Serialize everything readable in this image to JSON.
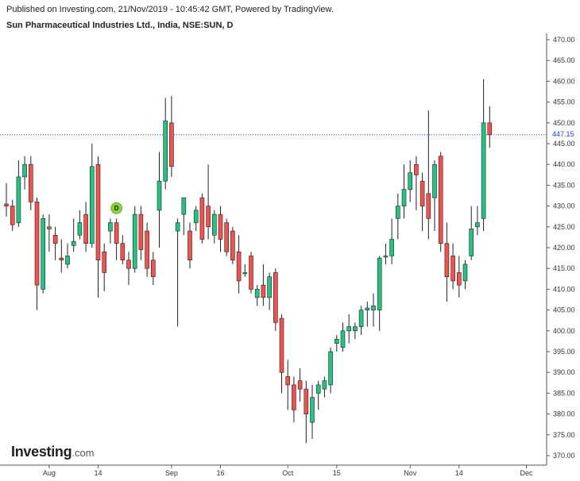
{
  "header": {
    "published": "Published on Investing.com, 21/Nov/2019 - 10:45:42 GMT, Powered by TradingView.",
    "symbol": "Sun Pharmaceutical Industries Ltd., India, NSE:SUN, D"
  },
  "logo": {
    "main": "Investing",
    "suffix": ".com"
  },
  "last_price_label": "447.15",
  "dividend_marker": "D",
  "colors": {
    "up": "#26c281",
    "down": "#ef5350",
    "last_price_line": "#1e3cff",
    "dividend": "#8bd13b"
  },
  "chart_data": {
    "type": "candlestick",
    "title": "Sun Pharmaceutical Industries Ltd., India, NSE:SUN, D",
    "ylim": [
      368,
      472
    ],
    "y_ticks": [
      370,
      375,
      380,
      385,
      390,
      395,
      400,
      405,
      410,
      415,
      420,
      425,
      430,
      435,
      440,
      445,
      450,
      455,
      460,
      465,
      470
    ],
    "y_tick_labels": [
      "370.00",
      "375.00",
      "380.00",
      "385.00",
      "390.00",
      "395.00",
      "400.00",
      "405.00",
      "410.00",
      "415.00",
      "420.00",
      "425.00",
      "430.00",
      "435.00",
      "440.00",
      "445.00",
      "450.00",
      "455.00",
      "460.00",
      "465.00",
      "470.00"
    ],
    "x_labels": [
      {
        "label": "Aug",
        "index": 7
      },
      {
        "label": "14",
        "index": 15
      },
      {
        "label": "Sep",
        "index": 27
      },
      {
        "label": "16",
        "index": 35
      },
      {
        "label": "Oct",
        "index": 46
      },
      {
        "label": "15",
        "index": 54
      },
      {
        "label": "Nov",
        "index": 66
      },
      {
        "label": "14",
        "index": 74
      },
      {
        "label": "Dec",
        "index": 85
      }
    ],
    "last_price": 447.15,
    "dividend_index": 18,
    "candles": [
      {
        "o": 430.5,
        "h": 435.5,
        "l": 427.5,
        "c": 430.0
      },
      {
        "o": 430.0,
        "h": 431.5,
        "l": 424.0,
        "c": 425.5
      },
      {
        "o": 426.0,
        "h": 441.0,
        "l": 425.0,
        "c": 437.0
      },
      {
        "o": 437.0,
        "h": 442.0,
        "l": 434.0,
        "c": 440.0
      },
      {
        "o": 440.0,
        "h": 442.0,
        "l": 429.0,
        "c": 431.0
      },
      {
        "o": 431.0,
        "h": 432.0,
        "l": 405.0,
        "c": 411.0
      },
      {
        "o": 410.0,
        "h": 428.0,
        "l": 409.0,
        "c": 427.0
      },
      {
        "o": 425.0,
        "h": 428.0,
        "l": 419.0,
        "c": 424.5
      },
      {
        "o": 423.0,
        "h": 425.0,
        "l": 417.0,
        "c": 421.0
      },
      {
        "o": 417.5,
        "h": 422.0,
        "l": 414.0,
        "c": 417.0
      },
      {
        "o": 416.0,
        "h": 421.0,
        "l": 415.0,
        "c": 418.0
      },
      {
        "o": 420.5,
        "h": 427.0,
        "l": 419.0,
        "c": 421.5
      },
      {
        "o": 423.0,
        "h": 429.0,
        "l": 422.0,
        "c": 426.0
      },
      {
        "o": 428.0,
        "h": 431.0,
        "l": 419.0,
        "c": 421.0
      },
      {
        "o": 421.0,
        "h": 445.0,
        "l": 420.0,
        "c": 439.5
      },
      {
        "o": 440.0,
        "h": 442.0,
        "l": 408.0,
        "c": 417.0
      },
      {
        "o": 419.0,
        "h": 421.0,
        "l": 409.5,
        "c": 414.0
      },
      {
        "o": 424.0,
        "h": 427.0,
        "l": 421.0,
        "c": 426.0
      },
      {
        "o": 426.0,
        "h": 427.0,
        "l": 417.0,
        "c": 421.0
      },
      {
        "o": 421.0,
        "h": 423.0,
        "l": 416.0,
        "c": 417.0
      },
      {
        "o": 417.0,
        "h": 419.0,
        "l": 411.0,
        "c": 415.0
      },
      {
        "o": 415.0,
        "h": 430.0,
        "l": 414.0,
        "c": 428.0
      },
      {
        "o": 428.0,
        "h": 430.0,
        "l": 417.0,
        "c": 419.5
      },
      {
        "o": 424.0,
        "h": 426.0,
        "l": 413.0,
        "c": 415.0
      },
      {
        "o": 417.0,
        "h": 419.0,
        "l": 411.0,
        "c": 413.0
      },
      {
        "o": 429.0,
        "h": 443.0,
        "l": 420.0,
        "c": 436.0
      },
      {
        "o": 436.0,
        "h": 456.0,
        "l": 434.0,
        "c": 450.5
      },
      {
        "o": 450.0,
        "h": 456.5,
        "l": 437.0,
        "c": 439.5
      },
      {
        "o": 424.0,
        "h": 427.0,
        "l": 401.0,
        "c": 426.0
      },
      {
        "o": 428.0,
        "h": 432.0,
        "l": 423.0,
        "c": 432.0
      },
      {
        "o": 424.0,
        "h": 426.0,
        "l": 415.0,
        "c": 417.0
      },
      {
        "o": 426.0,
        "h": 430.0,
        "l": 424.0,
        "c": 429.0
      },
      {
        "o": 432.0,
        "h": 433.0,
        "l": 421.0,
        "c": 422.0
      },
      {
        "o": 430.0,
        "h": 440.0,
        "l": 422.0,
        "c": 425.0
      },
      {
        "o": 423.0,
        "h": 429.0,
        "l": 421.0,
        "c": 428.0
      },
      {
        "o": 428.0,
        "h": 430.0,
        "l": 419.0,
        "c": 422.0
      },
      {
        "o": 426.0,
        "h": 427.0,
        "l": 418.0,
        "c": 419.0
      },
      {
        "o": 424.0,
        "h": 425.0,
        "l": 416.0,
        "c": 417.0
      },
      {
        "o": 419.0,
        "h": 423.0,
        "l": 409.0,
        "c": 412.0
      },
      {
        "o": 414.0,
        "h": 416.0,
        "l": 413.0,
        "c": 414.0
      },
      {
        "o": 418.0,
        "h": 419.0,
        "l": 409.0,
        "c": 410.0
      },
      {
        "o": 408.0,
        "h": 411.0,
        "l": 406.0,
        "c": 410.0
      },
      {
        "o": 411.0,
        "h": 416.0,
        "l": 406.0,
        "c": 408.0
      },
      {
        "o": 408.0,
        "h": 414.0,
        "l": 405.0,
        "c": 413.0
      },
      {
        "o": 414.0,
        "h": 415.0,
        "l": 400.0,
        "c": 402.0
      },
      {
        "o": 403.0,
        "h": 404.0,
        "l": 385.0,
        "c": 390.0
      },
      {
        "o": 389.0,
        "h": 393.0,
        "l": 381.0,
        "c": 387.0
      },
      {
        "o": 387.0,
        "h": 389.0,
        "l": 378.0,
        "c": 381.0
      },
      {
        "o": 388.0,
        "h": 391.0,
        "l": 383.0,
        "c": 386.0
      },
      {
        "o": 386.0,
        "h": 388.0,
        "l": 373.0,
        "c": 380.0
      },
      {
        "o": 378.0,
        "h": 387.0,
        "l": 374.0,
        "c": 384.0
      },
      {
        "o": 385.0,
        "h": 388.0,
        "l": 381.0,
        "c": 387.0
      },
      {
        "o": 386.0,
        "h": 389.0,
        "l": 384.0,
        "c": 388.0
      },
      {
        "o": 387.0,
        "h": 396.0,
        "l": 385.0,
        "c": 395.0
      },
      {
        "o": 397.0,
        "h": 399.0,
        "l": 395.0,
        "c": 398.0
      },
      {
        "o": 396.0,
        "h": 402.0,
        "l": 395.0,
        "c": 400.0
      },
      {
        "o": 400.0,
        "h": 404.0,
        "l": 397.0,
        "c": 401.0
      },
      {
        "o": 400.0,
        "h": 402.0,
        "l": 398.0,
        "c": 401.0
      },
      {
        "o": 401.0,
        "h": 406.0,
        "l": 399.0,
        "c": 405.0
      },
      {
        "o": 405.0,
        "h": 407.0,
        "l": 401.0,
        "c": 405.5
      },
      {
        "o": 405.0,
        "h": 409.0,
        "l": 401.0,
        "c": 406.0
      },
      {
        "o": 405.0,
        "h": 418.0,
        "l": 400.0,
        "c": 417.5
      },
      {
        "o": 418.0,
        "h": 421.0,
        "l": 416.0,
        "c": 418.0
      },
      {
        "o": 418.0,
        "h": 427.0,
        "l": 416.0,
        "c": 422.0
      },
      {
        "o": 427.0,
        "h": 433.0,
        "l": 422.0,
        "c": 430.0
      },
      {
        "o": 430.0,
        "h": 440.0,
        "l": 427.0,
        "c": 434.0
      },
      {
        "o": 434.0,
        "h": 441.0,
        "l": 431.0,
        "c": 438.0
      },
      {
        "o": 440.0,
        "h": 442.0,
        "l": 429.0,
        "c": 437.5
      },
      {
        "o": 436.0,
        "h": 438.0,
        "l": 424.0,
        "c": 430.0
      },
      {
        "o": 433.0,
        "h": 453.0,
        "l": 422.0,
        "c": 427.0
      },
      {
        "o": 432.0,
        "h": 441.0,
        "l": 424.0,
        "c": 440.0
      },
      {
        "o": 442.0,
        "h": 443.0,
        "l": 419.0,
        "c": 421.0
      },
      {
        "o": 421.0,
        "h": 426.0,
        "l": 407.0,
        "c": 413.0
      },
      {
        "o": 418.0,
        "h": 421.0,
        "l": 410.0,
        "c": 412.0
      },
      {
        "o": 414.0,
        "h": 418.0,
        "l": 408.0,
        "c": 411.0
      },
      {
        "o": 412.0,
        "h": 417.0,
        "l": 410.0,
        "c": 416.0
      },
      {
        "o": 418.0,
        "h": 430.0,
        "l": 417.0,
        "c": 424.5
      },
      {
        "o": 425.0,
        "h": 430.0,
        "l": 423.0,
        "c": 426.0
      },
      {
        "o": 427.0,
        "h": 460.5,
        "l": 424.0,
        "c": 450.0
      },
      {
        "o": 450.0,
        "h": 454.0,
        "l": 444.0,
        "c": 447.15
      }
    ]
  }
}
